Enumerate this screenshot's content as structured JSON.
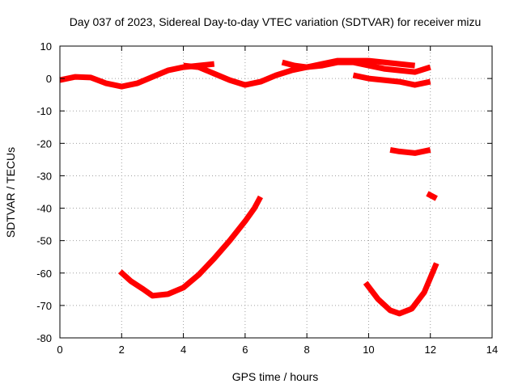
{
  "chart_data": {
    "type": "scatter",
    "title": "Day 037 of 2023, Sidereal Day-to-day VTEC variation (SDTVAR) for receiver mizu",
    "xlabel": "GPS time / hours",
    "ylabel": "SDTVAR / TECUs",
    "xlim": [
      0,
      14
    ],
    "ylim": [
      -80,
      10
    ],
    "xticks": [
      0,
      2,
      4,
      6,
      8,
      10,
      12,
      14
    ],
    "yticks": [
      10,
      0,
      -10,
      -20,
      -30,
      -40,
      -50,
      -60,
      -70,
      -80
    ],
    "xtick_labels": [
      "0",
      "2",
      "4",
      "6",
      "8",
      "10",
      "12",
      "14"
    ],
    "ytick_labels": [
      "10",
      "0",
      "-10",
      "-20",
      "-30",
      "-40",
      "-50",
      "-60",
      "-70",
      "-80"
    ],
    "grid": true,
    "color": "#ff0000",
    "series": [
      {
        "name": "track-1",
        "points": [
          [
            0.0,
            -0.5
          ],
          [
            0.5,
            0.5
          ],
          [
            1.0,
            0.3
          ],
          [
            1.5,
            -1.5
          ],
          [
            2.0,
            -2.5
          ],
          [
            2.5,
            -1.5
          ],
          [
            3.0,
            0.5
          ],
          [
            3.5,
            2.5
          ],
          [
            4.0,
            3.5
          ],
          [
            4.5,
            4.0
          ],
          [
            5.0,
            4.5
          ]
        ]
      },
      {
        "name": "track-2",
        "points": [
          [
            4.0,
            4.0
          ],
          [
            4.5,
            3.5
          ],
          [
            5.0,
            1.5
          ],
          [
            5.5,
            -0.5
          ],
          [
            6.0,
            -2.0
          ],
          [
            6.5,
            -1.0
          ],
          [
            7.0,
            1.0
          ],
          [
            7.5,
            2.5
          ],
          [
            8.0,
            3.5
          ],
          [
            8.5,
            4.5
          ],
          [
            9.0,
            5.5
          ],
          [
            9.5,
            5.5
          ],
          [
            10.0,
            5.5
          ],
          [
            10.5,
            5.0
          ],
          [
            11.0,
            4.5
          ],
          [
            11.5,
            4.0
          ]
        ]
      },
      {
        "name": "track-3",
        "points": [
          [
            7.2,
            5.0
          ],
          [
            7.6,
            4.0
          ],
          [
            8.0,
            3.5
          ],
          [
            8.5,
            4.0
          ],
          [
            9.0,
            5.0
          ],
          [
            9.5,
            5.0
          ],
          [
            10.0,
            4.0
          ],
          [
            10.5,
            3.0
          ],
          [
            11.0,
            2.5
          ],
          [
            11.5,
            2.0
          ],
          [
            12.0,
            3.5
          ]
        ]
      },
      {
        "name": "track-4",
        "points": [
          [
            9.5,
            1.0
          ],
          [
            10.0,
            0.0
          ],
          [
            10.5,
            -0.5
          ],
          [
            11.0,
            -1.0
          ],
          [
            11.5,
            -2.0
          ],
          [
            12.0,
            -1.0
          ]
        ]
      },
      {
        "name": "track-5",
        "points": [
          [
            10.7,
            -22.0
          ],
          [
            11.0,
            -22.5
          ],
          [
            11.5,
            -23.0
          ],
          [
            12.0,
            -22.0
          ]
        ]
      },
      {
        "name": "track-6",
        "points": [
          [
            11.9,
            -35.5
          ],
          [
            12.2,
            -37.0
          ]
        ]
      },
      {
        "name": "track-7",
        "points": [
          [
            1.95,
            -59.5
          ],
          [
            2.3,
            -62.5
          ],
          [
            2.7,
            -65.0
          ],
          [
            3.0,
            -67.0
          ],
          [
            3.5,
            -66.5
          ],
          [
            4.0,
            -64.5
          ],
          [
            4.5,
            -60.5
          ],
          [
            5.0,
            -55.5
          ],
          [
            5.5,
            -50.0
          ],
          [
            6.0,
            -44.0
          ],
          [
            6.3,
            -40.0
          ],
          [
            6.5,
            -36.5
          ]
        ]
      },
      {
        "name": "track-8",
        "points": [
          [
            9.9,
            -63.0
          ],
          [
            10.3,
            -68.0
          ],
          [
            10.7,
            -71.5
          ],
          [
            11.0,
            -72.5
          ],
          [
            11.4,
            -71.0
          ],
          [
            11.8,
            -66.0
          ],
          [
            12.2,
            -57.0
          ]
        ]
      }
    ]
  }
}
